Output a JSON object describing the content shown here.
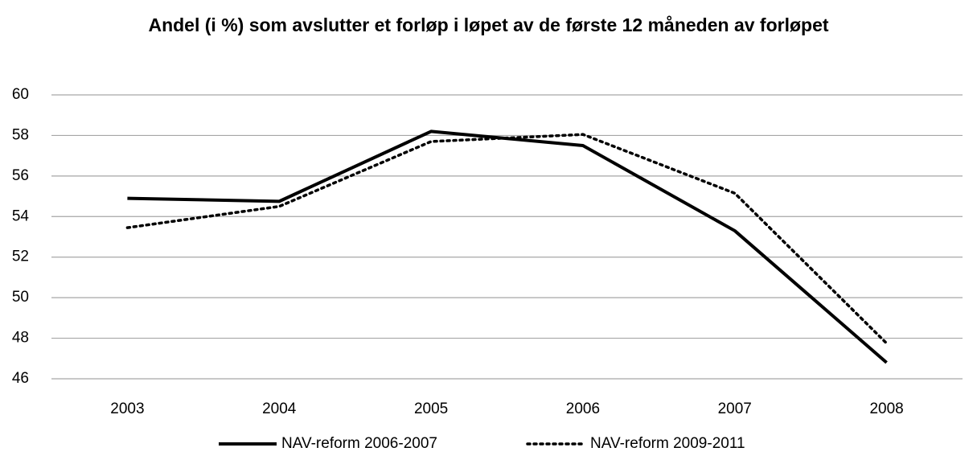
{
  "chart_data": {
    "type": "line",
    "title": "Andel (i %) som avslutter et forløp i løpet av de første 12 måneden av forløpet",
    "categories": [
      "2003",
      "2004",
      "2005",
      "2006",
      "2007",
      "2008"
    ],
    "series": [
      {
        "name": "NAV-reform 2006-2007",
        "color": "#000000",
        "dash": "solid",
        "values": [
          54.9,
          54.75,
          58.2,
          57.5,
          53.3,
          46.8
        ]
      },
      {
        "name": "NAV-reform 2009-2011",
        "color": "#000000",
        "dash": "dotted",
        "values": [
          53.45,
          54.5,
          57.7,
          58.05,
          55.15,
          47.75
        ]
      }
    ],
    "ylim": [
      46,
      60
    ],
    "yticks": [
      46,
      48,
      50,
      52,
      54,
      56,
      58,
      60
    ],
    "grid": true,
    "legend": "bottom"
  }
}
